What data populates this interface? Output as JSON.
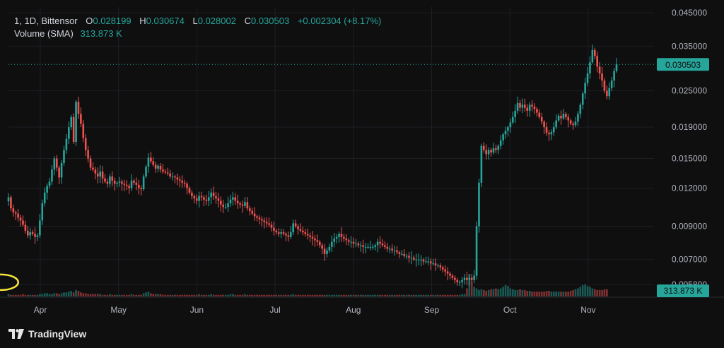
{
  "legend": {
    "interval": "1",
    "timeframe": "1D",
    "symbol": "Bittensor",
    "o_label": "O",
    "o_value": "0.028199",
    "h_label": "H",
    "h_value": "0.030674",
    "l_label": "L",
    "l_value": "0.028002",
    "c_label": "C",
    "c_value": "0.030503",
    "change": "+0.002304 (+8.17%)",
    "volume_label": "Volume (SMA)",
    "volume_value": "313.873 K"
  },
  "branding": {
    "name": "TradingView",
    "logo_icon": "tradingview-logo-icon"
  },
  "colors": {
    "background": "#0f0f10",
    "up": "#26a69a",
    "down": "#ef5350",
    "grid": "#1e1f23",
    "text": "#b2b5be",
    "price_line": "#26a69a",
    "highlight_circle": "#f5e63c"
  },
  "chart_data": {
    "type": "candlestick",
    "scale": "log",
    "y_ticks": [
      "0.045000",
      "0.035000",
      "0.025000",
      "0.019000",
      "0.015000",
      "0.012000",
      "0.009000",
      "0.007000",
      "0.005800"
    ],
    "x_ticks": [
      "Apr",
      "May",
      "Jun",
      "Jul",
      "Aug",
      "Sep",
      "Oct",
      "Nov"
    ],
    "last_price": "0.030503",
    "last_volume": "313.873 K",
    "ylim": [
      0.0053,
      0.047
    ],
    "grid": true,
    "annotation": {
      "type": "circle",
      "around_month": "Sep",
      "price": 0.0059
    },
    "closes": [
      0.0112,
      0.0103,
      0.01,
      0.0099,
      0.0096,
      0.0094,
      0.0091,
      0.0087,
      0.0084,
      0.0086,
      0.0085,
      0.0083,
      0.0084,
      0.0094,
      0.0107,
      0.0116,
      0.0122,
      0.0126,
      0.0138,
      0.015,
      0.014,
      0.013,
      0.0145,
      0.016,
      0.0174,
      0.019,
      0.0205,
      0.017,
      0.023,
      0.021,
      0.0195,
      0.0175,
      0.016,
      0.015,
      0.014,
      0.0138,
      0.0134,
      0.0131,
      0.0136,
      0.0129,
      0.0126,
      0.0124,
      0.0131,
      0.0127,
      0.0124,
      0.0125,
      0.0126,
      0.0124,
      0.0123,
      0.0122,
      0.012,
      0.0127,
      0.0125,
      0.0123,
      0.012,
      0.0119,
      0.0131,
      0.0141,
      0.0151,
      0.0147,
      0.0143,
      0.0139,
      0.0142,
      0.0138,
      0.0136,
      0.0135,
      0.0134,
      0.0131,
      0.0131,
      0.013,
      0.0128,
      0.0127,
      0.0125,
      0.0124,
      0.012,
      0.0116,
      0.0113,
      0.0111,
      0.0109,
      0.0113,
      0.0112,
      0.011,
      0.0109,
      0.0112,
      0.0116,
      0.0113,
      0.0111,
      0.0109,
      0.0106,
      0.0104,
      0.0104,
      0.0107,
      0.011,
      0.0112,
      0.0109,
      0.0107,
      0.0106,
      0.0105,
      0.0108,
      0.0103,
      0.0101,
      0.0099,
      0.0097,
      0.0096,
      0.0095,
      0.0094,
      0.0093,
      0.0092,
      0.0091,
      0.0089,
      0.0087,
      0.0086,
      0.0085,
      0.0086,
      0.0085,
      0.0084,
      0.0083,
      0.0086,
      0.0092,
      0.009,
      0.0088,
      0.0087,
      0.0086,
      0.0085,
      0.0084,
      0.0083,
      0.0082,
      0.0081,
      0.008,
      0.0078,
      0.0076,
      0.0073,
      0.0075,
      0.0077,
      0.008,
      0.0082,
      0.0083,
      0.0085,
      0.0083,
      0.0082,
      0.0081,
      0.008,
      0.008,
      0.0079,
      0.0079,
      0.0078,
      0.0078,
      0.0077,
      0.0077,
      0.0077,
      0.0077,
      0.0077,
      0.0078,
      0.008,
      0.0079,
      0.0078,
      0.0077,
      0.0076,
      0.0076,
      0.0075,
      0.0075,
      0.0074,
      0.0073,
      0.0073,
      0.0072,
      0.0072,
      0.0071,
      0.0071,
      0.007,
      0.007,
      0.007,
      0.007,
      0.0069,
      0.0069,
      0.0069,
      0.0068,
      0.0068,
      0.0067,
      0.0067,
      0.0066,
      0.0065,
      0.0064,
      0.0063,
      0.0062,
      0.0061,
      0.006,
      0.0059,
      0.0059,
      0.006,
      0.0061,
      0.006,
      0.0061,
      0.006,
      0.0062,
      0.009,
      0.0125,
      0.0165,
      0.016,
      0.0155,
      0.016,
      0.0157,
      0.0162,
      0.016,
      0.0165,
      0.0172,
      0.018,
      0.0185,
      0.019,
      0.0197,
      0.0205,
      0.0215,
      0.0228,
      0.022,
      0.0225,
      0.022,
      0.0215,
      0.0225,
      0.0222,
      0.0218,
      0.0212,
      0.0205,
      0.0198,
      0.019,
      0.0182,
      0.018,
      0.0183,
      0.019,
      0.02,
      0.0207,
      0.0203,
      0.021,
      0.0205,
      0.02,
      0.0195,
      0.0193,
      0.0198,
      0.021,
      0.0225,
      0.0245,
      0.0265,
      0.0285,
      0.031,
      0.034,
      0.0325,
      0.03,
      0.0285,
      0.027,
      0.025,
      0.024,
      0.0255,
      0.027,
      0.029,
      0.0305
    ],
    "volumes": [
      3,
      2,
      2,
      2,
      2,
      2,
      3,
      2,
      2,
      2,
      2,
      2,
      2,
      3,
      3,
      4,
      4,
      3,
      3,
      4,
      4,
      3,
      4,
      5,
      5,
      6,
      7,
      5,
      8,
      7,
      5,
      4,
      4,
      3,
      3,
      3,
      3,
      3,
      3,
      2,
      2,
      2,
      3,
      2,
      2,
      2,
      2,
      2,
      2,
      2,
      2,
      3,
      2,
      2,
      2,
      2,
      4,
      5,
      6,
      4,
      3,
      3,
      3,
      3,
      2,
      2,
      2,
      2,
      2,
      2,
      2,
      2,
      2,
      2,
      2,
      2,
      2,
      2,
      2,
      3,
      2,
      2,
      2,
      2,
      3,
      2,
      2,
      2,
      2,
      2,
      2,
      2,
      3,
      3,
      2,
      2,
      2,
      2,
      3,
      2,
      2,
      2,
      2,
      2,
      2,
      2,
      2,
      2,
      2,
      2,
      2,
      2,
      2,
      2,
      2,
      2,
      2,
      2,
      3,
      2,
      2,
      2,
      2,
      2,
      2,
      2,
      2,
      2,
      2,
      2,
      2,
      2,
      2,
      2,
      2,
      2,
      2,
      2,
      2,
      2,
      2,
      2,
      2,
      2,
      2,
      2,
      2,
      2,
      2,
      2,
      2,
      2,
      2,
      2,
      2,
      2,
      2,
      2,
      2,
      2,
      2,
      2,
      2,
      2,
      2,
      2,
      2,
      2,
      2,
      2,
      2,
      2,
      2,
      2,
      2,
      2,
      2,
      2,
      2,
      2,
      2,
      2,
      2,
      2,
      2,
      2,
      2,
      2,
      3,
      3,
      10,
      28,
      18,
      12,
      10,
      8,
      9,
      8,
      7,
      8,
      9,
      9,
      10,
      9,
      10,
      12,
      14,
      13,
      10,
      9,
      8,
      8,
      9,
      8,
      8,
      7,
      7,
      6,
      6,
      6,
      6,
      6,
      6,
      7,
      7,
      6,
      6,
      6,
      6,
      6,
      6,
      6,
      6,
      7,
      8,
      9,
      10,
      12,
      14,
      15,
      13,
      12,
      10,
      9,
      8,
      8,
      8,
      9,
      9
    ]
  }
}
